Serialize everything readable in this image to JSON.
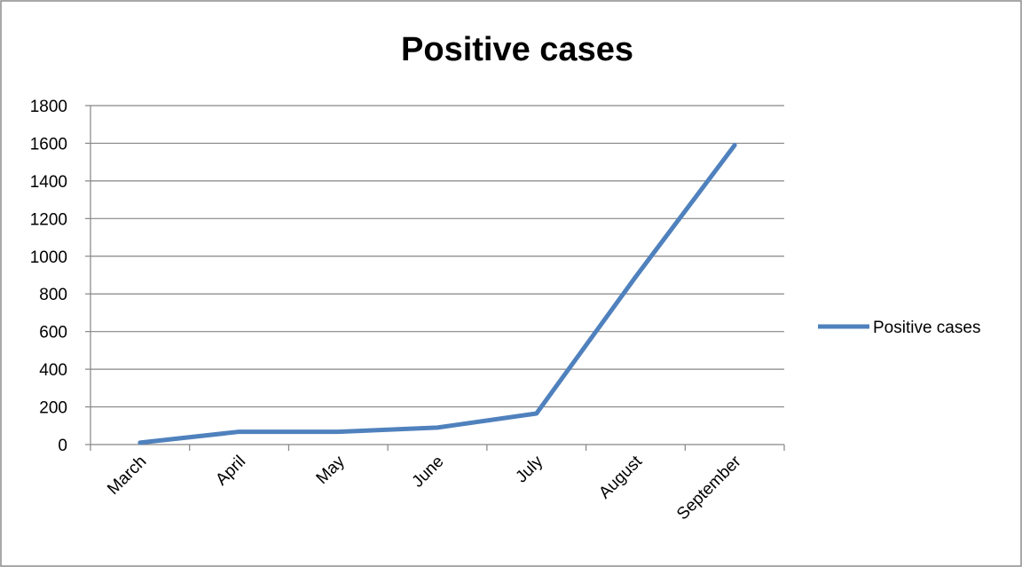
{
  "chart_data": {
    "type": "line",
    "title": "Positive cases",
    "xlabel": "",
    "ylabel": "",
    "categories": [
      "March",
      "April",
      "May",
      "June",
      "July",
      "August",
      "September"
    ],
    "series": [
      {
        "name": "Positive cases",
        "values": [
          10,
          68,
          68,
          90,
          165,
          890,
          1590
        ],
        "color": "#4F81BD"
      }
    ],
    "ylim": [
      0,
      1800
    ],
    "yticks": [
      0,
      200,
      400,
      600,
      800,
      1000,
      1200,
      1400,
      1600,
      1800
    ],
    "grid": true,
    "legend_position": "right"
  }
}
